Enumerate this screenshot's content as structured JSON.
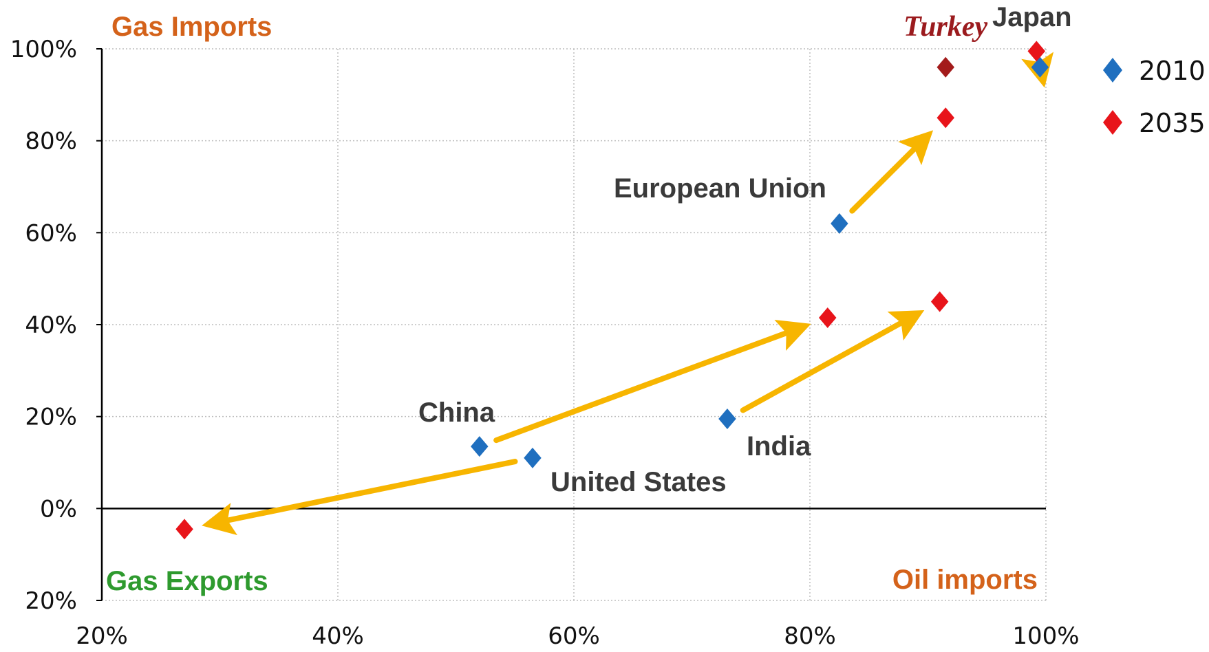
{
  "chart_data": {
    "type": "scatter",
    "x_axis": {
      "range": [
        20,
        100
      ],
      "ticks": [
        20,
        40,
        60,
        80,
        100
      ],
      "tick_labels": [
        "20%",
        "40%",
        "60%",
        "80%",
        "100%"
      ]
    },
    "y_axis": {
      "range": [
        -20,
        100
      ],
      "ticks": [
        -20,
        0,
        20,
        40,
        60,
        80,
        100
      ],
      "tick_labels": [
        "20%",
        "0%",
        "20%",
        "40%",
        "60%",
        "80%",
        "100%"
      ]
    },
    "grid": true,
    "legend": {
      "position": "right",
      "entries": [
        {
          "label": "2010",
          "color": "#1f6fbf"
        },
        {
          "label": "2035",
          "color": "#e8141a"
        }
      ]
    },
    "quadrant_labels": {
      "top_left": {
        "text": "Gas Imports",
        "color": "#d4621a"
      },
      "bottom_left": {
        "text": "Gas Exports",
        "color": "#2e9a2e"
      },
      "bottom_right": {
        "text": "Oil imports",
        "color": "#d4621a"
      }
    },
    "countries": [
      {
        "label": "Japan",
        "points": {
          "2010": [
            99.5,
            96
          ],
          "2035": [
            99.2,
            99.5
          ]
        }
      },
      {
        "label": "Turkey",
        "label_color": "#9b1b1e",
        "points": {
          "2035": [
            91.5,
            96
          ]
        }
      },
      {
        "label": "European Union",
        "points": {
          "2010": [
            82.5,
            62
          ],
          "2035": [
            91.5,
            85
          ]
        }
      },
      {
        "label": "China",
        "points": {
          "2010": [
            52,
            13.5
          ],
          "2035": [
            81.5,
            41.5
          ]
        }
      },
      {
        "label": "India",
        "points": {
          "2010": [
            73,
            19.5
          ],
          "2035": [
            91,
            45
          ]
        }
      },
      {
        "label": "United States",
        "points": {
          "2010": [
            56.5,
            11
          ],
          "2035": [
            27,
            -4.5
          ]
        }
      }
    ],
    "marker_colors": {
      "2010": "#1f6fbf",
      "2035": "#e8141a",
      "turkey": "#a31b1b"
    },
    "arrow_color": "#f7b500"
  }
}
